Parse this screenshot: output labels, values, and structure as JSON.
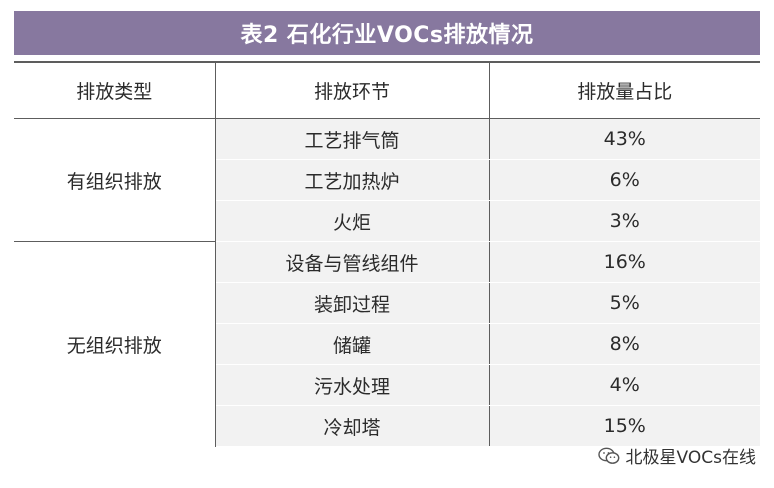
{
  "title": "表2  石化行业VOCs排放情况",
  "headers": [
    "排放类型",
    "排放环节",
    "排放量占比"
  ],
  "groups": [
    {
      "type": "有组织排放",
      "rows": [
        {
          "item": "工艺排气筒",
          "value": "43%"
        },
        {
          "item": "工艺加热炉",
          "value": "6%"
        },
        {
          "item": "火炬",
          "value": "3%"
        }
      ]
    },
    {
      "type": "无组织排放",
      "rows": [
        {
          "item": "设备与管线组件",
          "value": "16%"
        },
        {
          "item": "装卸过程",
          "value": "5%"
        },
        {
          "item": "储罐",
          "value": "8%"
        },
        {
          "item": "污水处理",
          "value": "4%"
        },
        {
          "item": "冷却塔",
          "value": "15%"
        }
      ]
    }
  ],
  "watermark": {
    "text": "北极星VOCs在线",
    "icon": "wechat-icon"
  }
}
